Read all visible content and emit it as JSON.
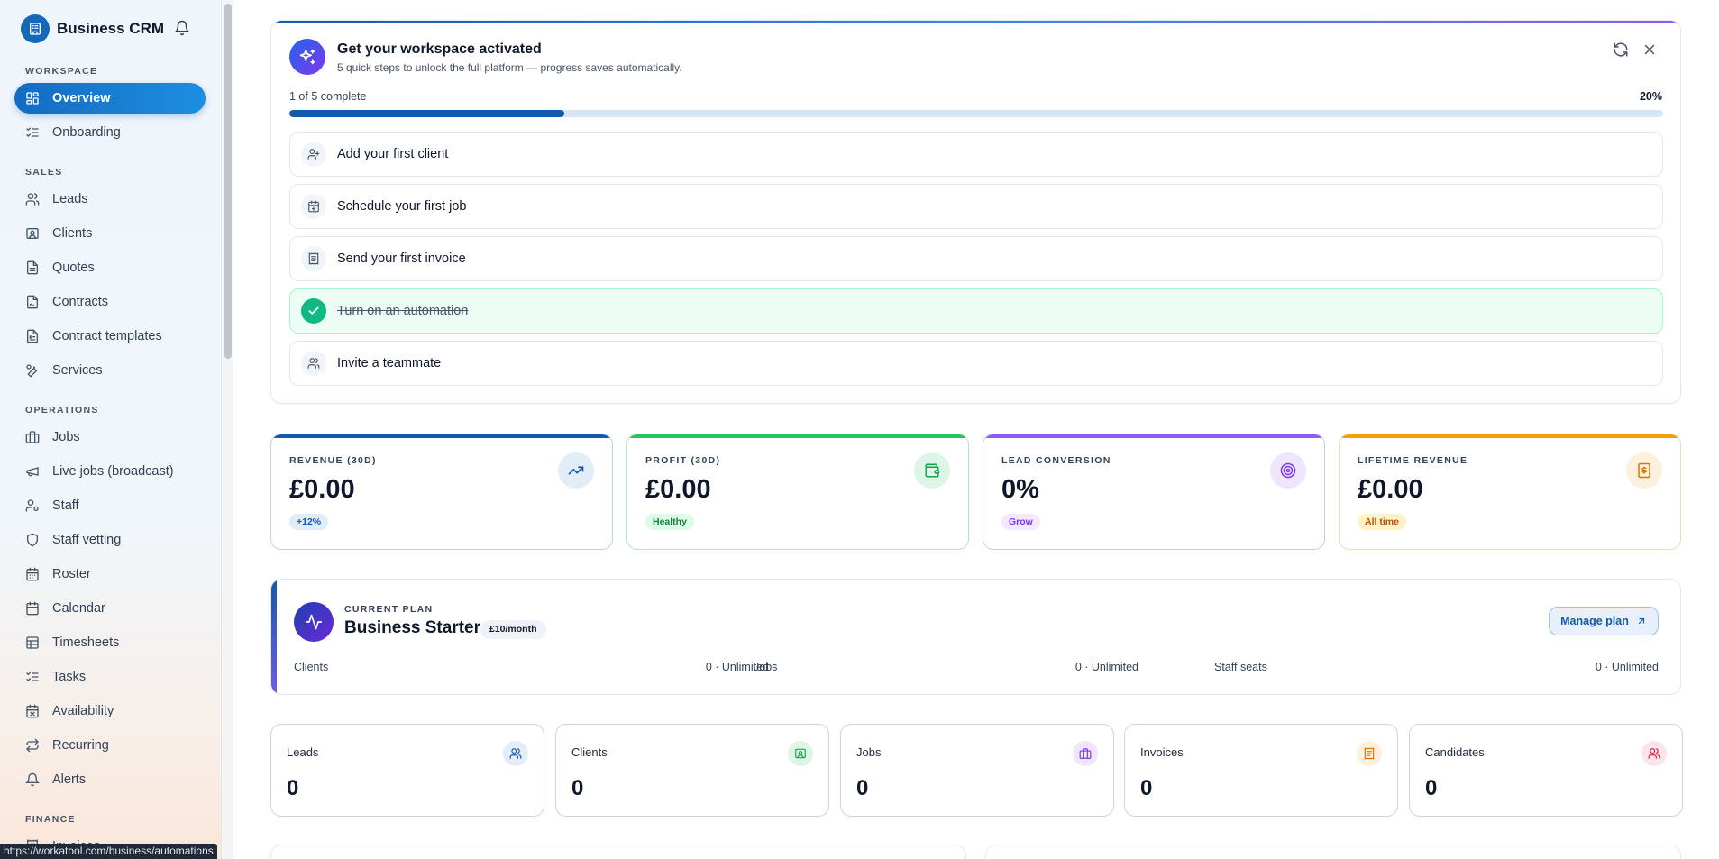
{
  "app": {
    "name": "Business CRM"
  },
  "sidebar": {
    "sections": [
      {
        "label": "WORKSPACE",
        "items": [
          {
            "label": "Overview",
            "icon": "layout-dashboard-icon",
            "active": true
          },
          {
            "label": "Onboarding",
            "icon": "list-checks-icon"
          }
        ]
      },
      {
        "label": "SALES",
        "items": [
          {
            "label": "Leads",
            "icon": "users-icon"
          },
          {
            "label": "Clients",
            "icon": "contact-icon"
          },
          {
            "label": "Quotes",
            "icon": "file-text-icon"
          },
          {
            "label": "Contracts",
            "icon": "file-signature-icon"
          },
          {
            "label": "Contract templates",
            "icon": "file-template-icon"
          },
          {
            "label": "Services",
            "icon": "wrench-icon"
          }
        ]
      },
      {
        "label": "OPERATIONS",
        "items": [
          {
            "label": "Jobs",
            "icon": "briefcase-icon"
          },
          {
            "label": "Live jobs (broadcast)",
            "icon": "megaphone-icon"
          },
          {
            "label": "Staff",
            "icon": "user-cog-icon"
          },
          {
            "label": "Staff vetting",
            "icon": "shield-icon"
          },
          {
            "label": "Roster",
            "icon": "calendar-days-icon"
          },
          {
            "label": "Calendar",
            "icon": "calendar-icon"
          },
          {
            "label": "Timesheets",
            "icon": "sheet-icon"
          },
          {
            "label": "Tasks",
            "icon": "list-todo-icon"
          },
          {
            "label": "Availability",
            "icon": "calendar-off-icon"
          },
          {
            "label": "Recurring",
            "icon": "repeat-icon"
          },
          {
            "label": "Alerts",
            "icon": "bell-icon"
          }
        ]
      },
      {
        "label": "FINANCE",
        "items": [
          {
            "label": "Invoices",
            "icon": "receipt-icon"
          }
        ]
      }
    ]
  },
  "status_bar": {
    "url": "https://workatool.com/business/automations"
  },
  "onboarding": {
    "title": "Get your workspace activated",
    "subtitle": "5 quick steps to unlock the full platform — progress saves automatically.",
    "progress_text": "1 of 5 complete",
    "progress_percent_label": "20%",
    "progress_fraction": 0.2,
    "steps": [
      {
        "label": "Add your first client",
        "icon": "user-plus-icon",
        "done": false
      },
      {
        "label": "Schedule your first job",
        "icon": "calendar-plus-icon",
        "done": false
      },
      {
        "label": "Send your first invoice",
        "icon": "receipt-icon",
        "done": false
      },
      {
        "label": "Turn on an automation",
        "icon": "check-icon",
        "done": true
      },
      {
        "label": "Invite a teammate",
        "icon": "users-icon",
        "done": false
      }
    ]
  },
  "kpis": [
    {
      "label": "REVENUE (30D)",
      "value": "£0.00",
      "badge": "+12%",
      "icon": "trending-up-icon",
      "color": "#1659aa"
    },
    {
      "label": "PROFIT (30D)",
      "value": "£0.00",
      "badge": "Healthy",
      "icon": "wallet-icon",
      "color": "#16a34a"
    },
    {
      "label": "LEAD CONVERSION",
      "value": "0%",
      "badge": "Grow",
      "icon": "target-icon",
      "color": "#7c3aed"
    },
    {
      "label": "LIFETIME REVENUE",
      "value": "£0.00",
      "badge": "All time",
      "icon": "receipt-dollar-icon",
      "color": "#d97706"
    }
  ],
  "plan": {
    "label": "CURRENT PLAN",
    "name": "Business Starter",
    "price": "£10/month",
    "manage_label": "Manage plan",
    "usage": [
      {
        "label": "Clients",
        "value": "0 · Unlimited"
      },
      {
        "label": "Jobs",
        "value": "0 · Unlimited"
      },
      {
        "label": "Staff seats",
        "value": "0 · Unlimited"
      }
    ]
  },
  "stats": [
    {
      "label": "Leads",
      "value": "0",
      "icon": "users-icon",
      "color": "#1659aa"
    },
    {
      "label": "Clients",
      "value": "0",
      "icon": "contact-icon",
      "color": "#16a34a"
    },
    {
      "label": "Jobs",
      "value": "0",
      "icon": "briefcase-icon",
      "color": "#7c3aed"
    },
    {
      "label": "Invoices",
      "value": "0",
      "icon": "receipt-icon",
      "color": "#d97706"
    },
    {
      "label": "Candidates",
      "value": "0",
      "icon": "users-icon",
      "color": "#e11d48"
    }
  ]
}
